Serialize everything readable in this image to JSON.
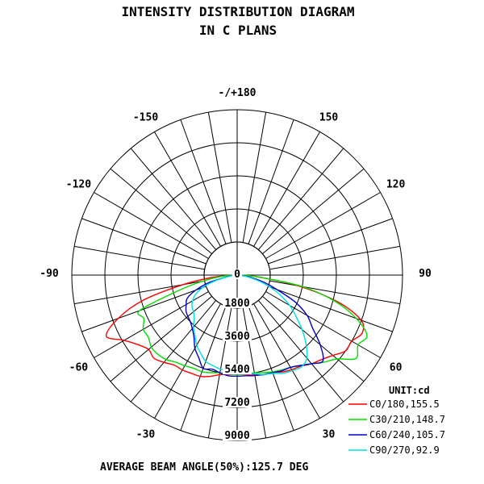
{
  "chart_data": {
    "type": "polar",
    "title": "INTENSITY DISTRIBUTION DIAGRAM",
    "subtitle": "IN C PLANS",
    "unit_label": "UNIT:cd",
    "footer": "AVERAGE BEAM ANGLE(50%):125.7 DEG",
    "radial_max": 9000,
    "radial_ticks": [
      "0",
      "1800",
      "3600",
      "5400",
      "7200",
      "9000"
    ],
    "radial_tick_values": [
      0,
      1800,
      3600,
      5400,
      7200,
      9000
    ],
    "angle_labels": [
      {
        "angle": 180,
        "text": "-/+180"
      },
      {
        "angle": 150,
        "text": "150"
      },
      {
        "angle": -150,
        "text": "-150"
      },
      {
        "angle": 120,
        "text": "120"
      },
      {
        "angle": -120,
        "text": "-120"
      },
      {
        "angle": 90,
        "text": "90"
      },
      {
        "angle": -90,
        "text": "-90"
      },
      {
        "angle": 60,
        "text": "60"
      },
      {
        "angle": -60,
        "text": "-60"
      },
      {
        "angle": 30,
        "text": "30"
      },
      {
        "angle": -30,
        "text": "-30"
      }
    ],
    "gridline_step_deg": 10,
    "grid": true,
    "legend_position": "bottom-right",
    "series": [
      {
        "name": "C0/180,155.5",
        "color": "#ff0000",
        "points": [
          [
            -90,
            0
          ],
          [
            -85,
            1260
          ],
          [
            -80,
            2970
          ],
          [
            -75,
            5300
          ],
          [
            -70,
            6890
          ],
          [
            -65,
            7860
          ],
          [
            -60,
            7100
          ],
          [
            -55,
            6600
          ],
          [
            -50,
            6300
          ],
          [
            -45,
            6400
          ],
          [
            -40,
            6200
          ],
          [
            -35,
            5980
          ],
          [
            -30,
            5960
          ],
          [
            -25,
            5900
          ],
          [
            -20,
            5870
          ],
          [
            -15,
            5710
          ],
          [
            -10,
            5500
          ],
          [
            -5,
            5430
          ],
          [
            0,
            5400
          ],
          [
            5,
            5430
          ],
          [
            10,
            5480
          ],
          [
            15,
            5620
          ],
          [
            20,
            5640
          ],
          [
            25,
            5820
          ],
          [
            30,
            5940
          ],
          [
            35,
            6050
          ],
          [
            40,
            6300
          ],
          [
            45,
            6500
          ],
          [
            50,
            6800
          ],
          [
            55,
            7200
          ],
          [
            60,
            7200
          ],
          [
            65,
            7500
          ],
          [
            70,
            7180
          ],
          [
            75,
            5690
          ],
          [
            80,
            3370
          ],
          [
            85,
            1060
          ],
          [
            90,
            0
          ]
        ]
      },
      {
        "name": "C30/210,148.7",
        "color": "#00dd00",
        "points": [
          [
            -90,
            0
          ],
          [
            -85,
            870
          ],
          [
            -80,
            1900
          ],
          [
            -75,
            3360
          ],
          [
            -70,
            5650
          ],
          [
            -65,
            5600
          ],
          [
            -60,
            5900
          ],
          [
            -55,
            5900
          ],
          [
            -50,
            6100
          ],
          [
            -45,
            6100
          ],
          [
            -40,
            6000
          ],
          [
            -35,
            5800
          ],
          [
            -30,
            5700
          ],
          [
            -25,
            5600
          ],
          [
            -20,
            5600
          ],
          [
            -15,
            5500
          ],
          [
            -10,
            5400
          ],
          [
            -5,
            5400
          ],
          [
            0,
            5400
          ],
          [
            5,
            5400
          ],
          [
            10,
            5400
          ],
          [
            15,
            5500
          ],
          [
            20,
            5600
          ],
          [
            25,
            5700
          ],
          [
            30,
            5800
          ],
          [
            35,
            6000
          ],
          [
            40,
            6300
          ],
          [
            45,
            6700
          ],
          [
            50,
            7100
          ],
          [
            55,
            7900
          ],
          [
            60,
            7600
          ],
          [
            65,
            7800
          ],
          [
            70,
            6900
          ],
          [
            75,
            5500
          ],
          [
            80,
            3600
          ],
          [
            85,
            1200
          ],
          [
            90,
            0
          ]
        ]
      },
      {
        "name": "C60/240,105.7",
        "color": "#0000cc",
        "points": [
          [
            -90,
            0
          ],
          [
            -85,
            300
          ],
          [
            -80,
            600
          ],
          [
            -75,
            1600
          ],
          [
            -70,
            2400
          ],
          [
            -65,
            3000
          ],
          [
            -60,
            3200
          ],
          [
            -55,
            3400
          ],
          [
            -50,
            3500
          ],
          [
            -45,
            3600
          ],
          [
            -40,
            3800
          ],
          [
            -35,
            4100
          ],
          [
            -30,
            4600
          ],
          [
            -25,
            4950
          ],
          [
            -20,
            5400
          ],
          [
            -15,
            5300
          ],
          [
            -10,
            5400
          ],
          [
            -5,
            5500
          ],
          [
            0,
            5500
          ],
          [
            5,
            5500
          ],
          [
            10,
            5550
          ],
          [
            15,
            5600
          ],
          [
            20,
            5650
          ],
          [
            25,
            5750
          ],
          [
            30,
            5800
          ],
          [
            35,
            6000
          ],
          [
            40,
            6300
          ],
          [
            45,
            6600
          ],
          [
            50,
            5900
          ],
          [
            55,
            5000
          ],
          [
            60,
            4400
          ],
          [
            65,
            3500
          ],
          [
            70,
            2300
          ],
          [
            75,
            1500
          ],
          [
            80,
            800
          ],
          [
            85,
            300
          ],
          [
            90,
            0
          ]
        ]
      },
      {
        "name": "C90/270,92.9",
        "color": "#00e0e0",
        "points": [
          [
            -90,
            0
          ],
          [
            -85,
            200
          ],
          [
            -80,
            500
          ],
          [
            -75,
            1300
          ],
          [
            -70,
            2000
          ],
          [
            -65,
            2500
          ],
          [
            -60,
            2800
          ],
          [
            -55,
            3000
          ],
          [
            -50,
            3100
          ],
          [
            -45,
            3300
          ],
          [
            -40,
            3700
          ],
          [
            -35,
            4000
          ],
          [
            -30,
            4400
          ],
          [
            -25,
            4700
          ],
          [
            -20,
            5000
          ],
          [
            -15,
            5100
          ],
          [
            -10,
            5200
          ],
          [
            -5,
            5200
          ],
          [
            0,
            5250
          ],
          [
            5,
            5300
          ],
          [
            10,
            5450
          ],
          [
            15,
            5600
          ],
          [
            20,
            5700
          ],
          [
            25,
            5900
          ],
          [
            30,
            6000
          ],
          [
            35,
            6100
          ],
          [
            40,
            5900
          ],
          [
            45,
            5300
          ],
          [
            50,
            4600
          ],
          [
            55,
            3900
          ],
          [
            60,
            3300
          ],
          [
            65,
            2600
          ],
          [
            70,
            1900
          ],
          [
            75,
            1200
          ],
          [
            80,
            600
          ],
          [
            85,
            200
          ],
          [
            90,
            0
          ]
        ]
      }
    ]
  }
}
